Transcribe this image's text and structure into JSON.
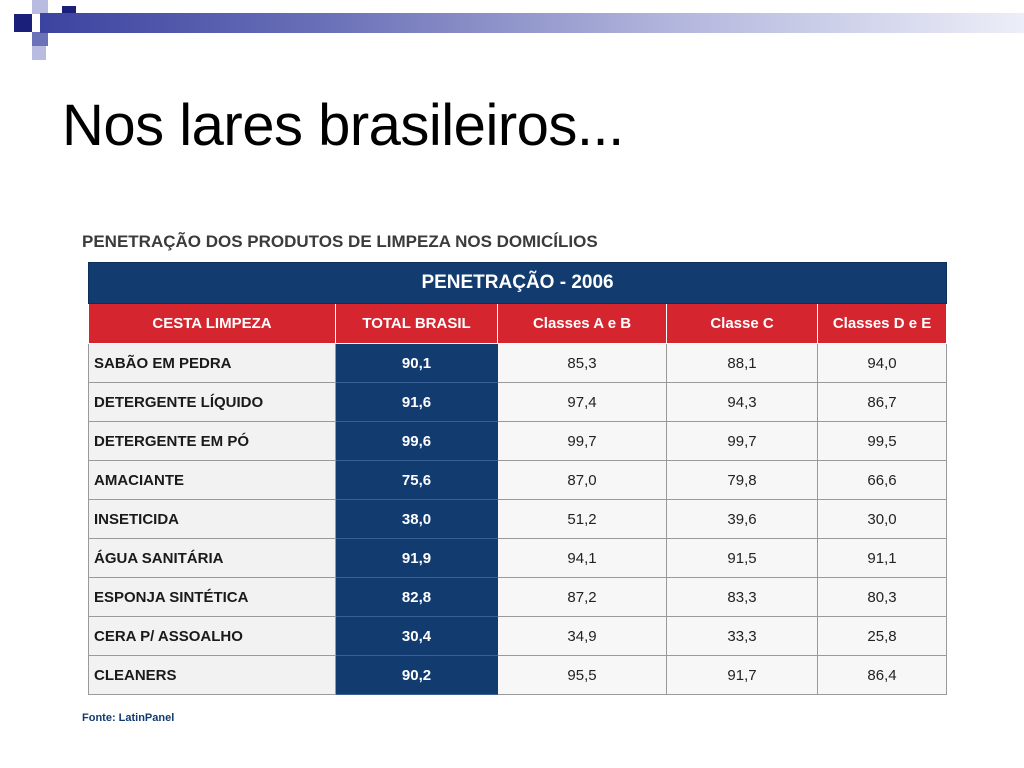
{
  "slide": {
    "title": "Nos lares brasileiros..."
  },
  "chart_data": {
    "type": "table",
    "caption": "PENETRAÇÃO DOS PRODUTOS DE LIMPEZA NOS DOMICÍLIOS",
    "title": "PENETRAÇÃO - 2006",
    "columns": [
      "CESTA LIMPEZA",
      "TOTAL BRASIL",
      "Classes A e B",
      "Classe C",
      "Classes D e E"
    ],
    "rows": [
      {
        "category": "SABÃO EM PEDRA",
        "values": [
          "90,1",
          "85,3",
          "88,1",
          "94,0"
        ]
      },
      {
        "category": "DETERGENTE LÍQUIDO",
        "values": [
          "91,6",
          "97,4",
          "94,3",
          "86,7"
        ]
      },
      {
        "category": "DETERGENTE EM PÓ",
        "values": [
          "99,6",
          "99,7",
          "99,7",
          "99,5"
        ]
      },
      {
        "category": "AMACIANTE",
        "values": [
          "75,6",
          "87,0",
          "79,8",
          "66,6"
        ]
      },
      {
        "category": "INSETICIDA",
        "values": [
          "38,0",
          "51,2",
          "39,6",
          "30,0"
        ]
      },
      {
        "category": "ÁGUA SANITÁRIA",
        "values": [
          "91,9",
          "94,1",
          "91,5",
          "91,1"
        ]
      },
      {
        "category": "ESPONJA SINTÉTICA",
        "values": [
          "82,8",
          "87,2",
          "83,3",
          "80,3"
        ]
      },
      {
        "category": "CERA P/ ASSOALHO",
        "values": [
          "30,4",
          "34,9",
          "33,3",
          "25,8"
        ]
      },
      {
        "category": "CLEANERS",
        "values": [
          "90,2",
          "95,5",
          "91,7",
          "86,4"
        ]
      }
    ],
    "source": "Fonte: LatinPanel"
  },
  "colors": {
    "title_band": "#123b70",
    "header_band": "#d52630",
    "total_column": "#123b70"
  }
}
